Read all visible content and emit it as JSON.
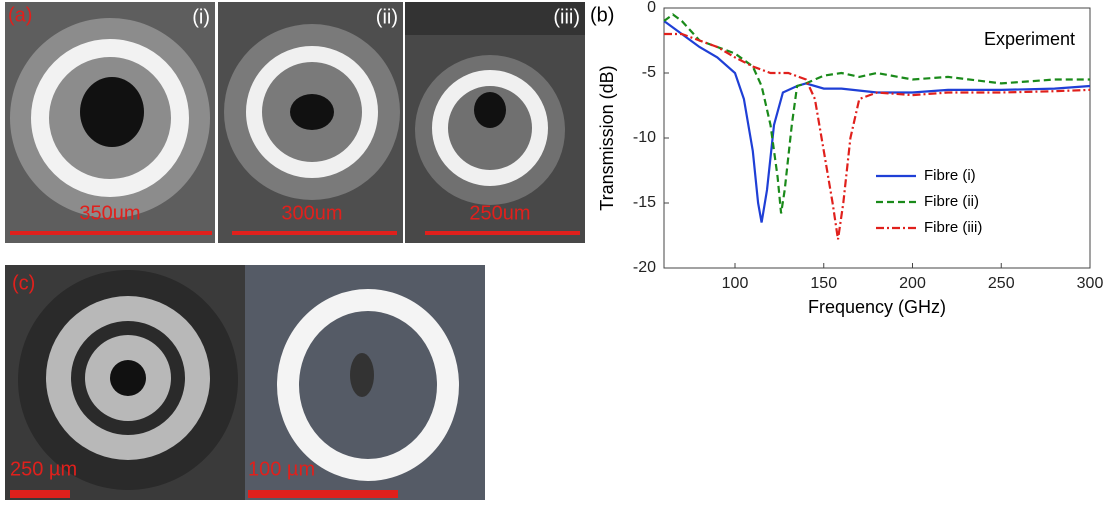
{
  "panels": {
    "a": {
      "label": "(a)",
      "fibres": [
        {
          "label": "(i)",
          "scale": "350um"
        },
        {
          "label": "(ii)",
          "scale": "300um"
        },
        {
          "label": "(iii)",
          "scale": "250um"
        }
      ]
    },
    "b": {
      "label": "(b)"
    },
    "c": {
      "label": "(c)",
      "scales": [
        "250 µm",
        "100 µm"
      ]
    }
  },
  "chart_data": {
    "type": "line",
    "annotation": "Experiment",
    "x_label": "Frequency (GHz)",
    "y_label": "Transmission (dB)",
    "xlim": [
      60,
      300
    ],
    "xticks": [
      100,
      150,
      200,
      250,
      300
    ],
    "ylim": [
      -20,
      0
    ],
    "yticks": [
      0,
      -5,
      -10,
      -15,
      -20
    ],
    "legend": "lower-right",
    "series": [
      {
        "name": "Fibre (i)",
        "color": "#1f3fd6",
        "dash": "solid",
        "x": [
          60,
          70,
          80,
          90,
          100,
          105,
          110,
          113,
          115,
          118,
          122,
          127,
          135,
          140,
          150,
          160,
          180,
          200,
          220,
          250,
          280,
          300
        ],
        "values": [
          -1,
          -2,
          -3,
          -3.8,
          -5,
          -7,
          -11,
          -15,
          -16.5,
          -14,
          -9,
          -6.5,
          -6,
          -5.8,
          -6.2,
          -6.2,
          -6.5,
          -6.5,
          -6.3,
          -6.3,
          -6.2,
          -6
        ]
      },
      {
        "name": "Fibre (ii)",
        "color": "#1a8a1a",
        "dash": "dashed",
        "x": [
          60,
          65,
          70,
          80,
          90,
          100,
          110,
          115,
          120,
          124,
          126,
          128,
          132,
          135,
          140,
          150,
          160,
          170,
          180,
          200,
          220,
          250,
          280,
          300
        ],
        "values": [
          -1,
          -0.5,
          -1,
          -2.5,
          -3,
          -3.5,
          -4.5,
          -6,
          -9,
          -13,
          -15.8,
          -14,
          -9,
          -6,
          -5.8,
          -5.2,
          -5,
          -5.3,
          -5,
          -5.5,
          -5.3,
          -5.8,
          -5.5,
          -5.5
        ]
      },
      {
        "name": "Fibre (iii)",
        "color": "#e0201c",
        "dash": "dashdot",
        "x": [
          60,
          70,
          80,
          90,
          100,
          110,
          120,
          130,
          140,
          145,
          150,
          155,
          158,
          161,
          165,
          170,
          180,
          200,
          220,
          250,
          280,
          300
        ],
        "values": [
          -2,
          -2,
          -2.5,
          -3,
          -3.8,
          -4.5,
          -5,
          -5,
          -5.5,
          -7,
          -11,
          -15,
          -17.8,
          -15,
          -10,
          -7,
          -6.5,
          -6.7,
          -6.5,
          -6.5,
          -6.4,
          -6.3
        ]
      }
    ]
  }
}
